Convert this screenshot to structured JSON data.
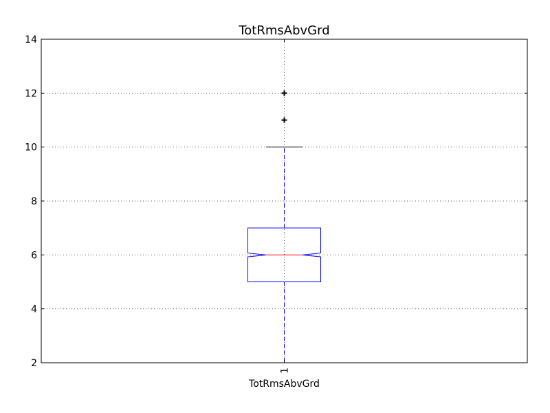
{
  "chart_data": {
    "type": "boxplot",
    "title": "TotRmsAbvGrd",
    "xlabel": "TotRmsAbvGrd",
    "x_ticks": [
      "1"
    ],
    "ylim": [
      2,
      14
    ],
    "y_ticks": [
      2,
      4,
      6,
      8,
      10,
      12,
      14
    ],
    "grid": true,
    "notched": true,
    "series": [
      {
        "whisker_low": 2,
        "q1": 5,
        "median": 6,
        "q3": 7,
        "whisker_high": 10,
        "notch_low": 5.93,
        "notch_high": 6.07,
        "outliers": [
          11,
          12
        ]
      }
    ],
    "colors": {
      "box": "#0000ff",
      "median": "#ff0000",
      "whisker": "#0000ff",
      "cap": "#000000",
      "flier": "#000000",
      "grid": "#555555"
    }
  }
}
